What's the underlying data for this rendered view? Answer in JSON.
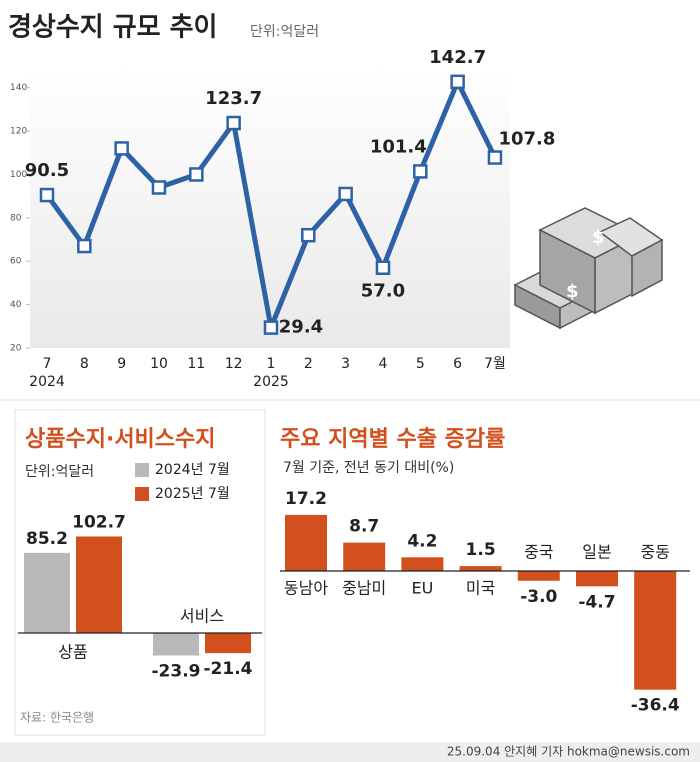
{
  "chart_data": [
    {
      "type": "line",
      "title": "경상수지 규모 추이",
      "subtitle": "단위:억달러",
      "categories": [
        "7",
        "8",
        "9",
        "10",
        "11",
        "12",
        "1",
        "2",
        "3",
        "4",
        "5",
        "6",
        "7월"
      ],
      "year_labels": [
        "2024",
        null,
        null,
        null,
        null,
        null,
        "2025",
        null,
        null,
        null,
        null,
        null,
        null
      ],
      "values": [
        90.5,
        67,
        112,
        94,
        100,
        123.7,
        29.4,
        72,
        91,
        57.0,
        101.4,
        142.7,
        107.8
      ],
      "value_labels": [
        "90.5",
        null,
        null,
        null,
        null,
        "123.7",
        "29.4",
        null,
        null,
        "57.0",
        "101.4",
        "142.7",
        "107.8"
      ],
      "color": "#2e62a6",
      "ylim": [
        20,
        150
      ],
      "yticks": [
        20,
        40,
        60,
        80,
        100,
        120,
        140
      ],
      "grid": false
    },
    {
      "type": "bar",
      "title": "상품수지·서비스수지",
      "subtitle": "단위:억달러",
      "categories": [
        "상품",
        "서비스"
      ],
      "series": [
        {
          "name": "2024년 7월",
          "color": "#b9b9b9",
          "values": [
            85.2,
            -23.9
          ]
        },
        {
          "name": "2025년 7월",
          "color": "#d2501e",
          "values": [
            102.7,
            -21.4
          ]
        }
      ]
    },
    {
      "type": "bar",
      "title": "주요 지역별 수출 증감률",
      "subtitle": "7월 기준, 전년 동기 대비(%)",
      "categories": [
        "동남아",
        "중남미",
        "EU",
        "미국",
        "중국",
        "일본",
        "중동"
      ],
      "values": [
        17.2,
        8.7,
        4.2,
        1.5,
        -3.0,
        -4.7,
        -36.4
      ],
      "value_labels": [
        "17.2",
        "8.7",
        "4.2",
        "1.5",
        "-3.0",
        "-4.7",
        "-36.4"
      ],
      "color": "#d2501e"
    }
  ],
  "source": "자료: 한국은행",
  "credit": "25.09.04 안지혜 기자 hokma@newsis.com"
}
